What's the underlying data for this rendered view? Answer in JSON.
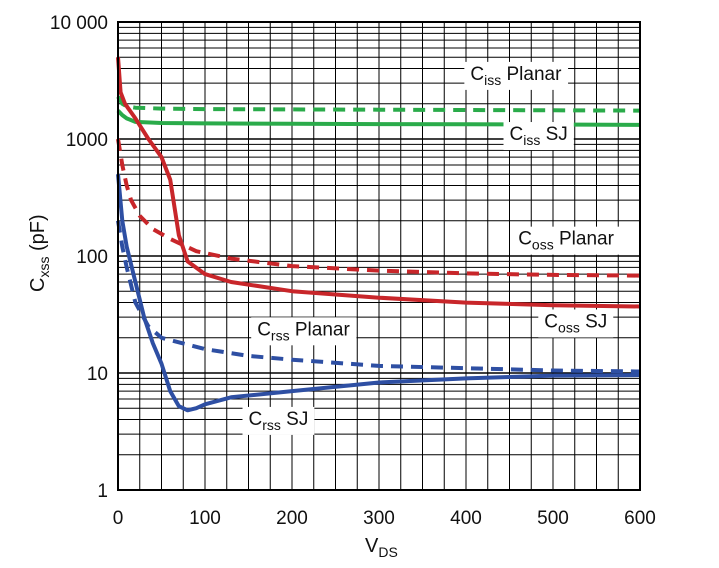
{
  "chart_data": {
    "type": "line",
    "xlabel": {
      "main": "V",
      "sub": "DS"
    },
    "ylabel": {
      "main": "C",
      "sub": "xss",
      "unit": " (pF)"
    },
    "xlim": [
      0,
      600
    ],
    "ylim": [
      1,
      10000
    ],
    "yscale": "log",
    "grid": true,
    "x_ticks": [
      0,
      100,
      200,
      300,
      400,
      500,
      600
    ],
    "x_tick_labels": [
      "0",
      "100",
      "200",
      "300",
      "400",
      "500",
      "600"
    ],
    "y_ticks": [
      1,
      10,
      100,
      1000,
      10000
    ],
    "y_tick_labels": [
      "1",
      "10",
      "100",
      "1000",
      "10 000"
    ],
    "series": [
      {
        "name": "Ciss Planar",
        "main": "C",
        "sub": "iss",
        "rest": " Planar",
        "color": "#2aab4a",
        "dash": true,
        "points": [
          [
            0,
            2300
          ],
          [
            5,
            2000
          ],
          [
            10,
            1900
          ],
          [
            20,
            1850
          ],
          [
            50,
            1820
          ],
          [
            100,
            1800
          ],
          [
            200,
            1790
          ],
          [
            300,
            1780
          ],
          [
            400,
            1770
          ],
          [
            500,
            1760
          ],
          [
            600,
            1750
          ]
        ]
      },
      {
        "name": "Ciss SJ",
        "main": "C",
        "sub": "iss",
        "rest": " SJ",
        "color": "#2aab4a",
        "dash": false,
        "points": [
          [
            0,
            1750
          ],
          [
            5,
            1600
          ],
          [
            10,
            1500
          ],
          [
            20,
            1400
          ],
          [
            50,
            1370
          ],
          [
            100,
            1360
          ],
          [
            200,
            1350
          ],
          [
            300,
            1340
          ],
          [
            400,
            1335
          ],
          [
            500,
            1330
          ],
          [
            600,
            1320
          ]
        ]
      },
      {
        "name": "Coss Planar",
        "main": "C",
        "sub": "oss",
        "rest": " Planar",
        "color": "#c8262a",
        "dash": true,
        "points": [
          [
            0,
            1000
          ],
          [
            5,
            600
          ],
          [
            10,
            400
          ],
          [
            15,
            300
          ],
          [
            25,
            220
          ],
          [
            40,
            170
          ],
          [
            60,
            140
          ],
          [
            90,
            110
          ],
          [
            130,
            95
          ],
          [
            200,
            82
          ],
          [
            300,
            75
          ],
          [
            400,
            71
          ],
          [
            500,
            69
          ],
          [
            600,
            68
          ]
        ]
      },
      {
        "name": "Coss SJ",
        "main": "C",
        "sub": "oss",
        "rest": " SJ",
        "color": "#c8262a",
        "dash": false,
        "points": [
          [
            0,
            5000
          ],
          [
            3,
            2500
          ],
          [
            8,
            2000
          ],
          [
            20,
            1500
          ],
          [
            35,
            1000
          ],
          [
            50,
            700
          ],
          [
            60,
            450
          ],
          [
            70,
            150
          ],
          [
            80,
            90
          ],
          [
            100,
            70
          ],
          [
            130,
            60
          ],
          [
            200,
            50
          ],
          [
            300,
            44
          ],
          [
            400,
            40
          ],
          [
            500,
            38
          ],
          [
            600,
            37
          ]
        ]
      },
      {
        "name": "Crss Planar",
        "main": "C",
        "sub": "rss",
        "rest": " Planar",
        "color": "#2e4fa3",
        "dash": true,
        "points": [
          [
            0,
            200
          ],
          [
            5,
            120
          ],
          [
            10,
            80
          ],
          [
            20,
            40
          ],
          [
            35,
            25
          ],
          [
            50,
            20
          ],
          [
            100,
            16
          ],
          [
            150,
            14
          ],
          [
            200,
            13
          ],
          [
            300,
            11.5
          ],
          [
            400,
            11
          ],
          [
            500,
            10.5
          ],
          [
            600,
            10.3
          ]
        ]
      },
      {
        "name": "Crss SJ",
        "main": "C",
        "sub": "rss",
        "rest": " SJ",
        "color": "#2e4fa3",
        "dash": false,
        "points": [
          [
            0,
            500
          ],
          [
            5,
            200
          ],
          [
            10,
            120
          ],
          [
            20,
            60
          ],
          [
            30,
            30
          ],
          [
            40,
            18
          ],
          [
            50,
            12
          ],
          [
            60,
            7
          ],
          [
            70,
            5.2
          ],
          [
            80,
            4.8
          ],
          [
            90,
            5
          ],
          [
            100,
            5.4
          ],
          [
            130,
            6.2
          ],
          [
            200,
            7
          ],
          [
            300,
            8.3
          ],
          [
            400,
            9
          ],
          [
            500,
            9.5
          ],
          [
            600,
            9.6
          ]
        ]
      }
    ],
    "annotations": [
      {
        "series": "Ciss Planar",
        "at": [
          405,
          3200
        ]
      },
      {
        "series": "Ciss SJ",
        "at": [
          450,
          980
        ]
      },
      {
        "series": "Coss Planar",
        "at": [
          460,
          125
        ]
      },
      {
        "series": "Coss SJ",
        "at": [
          490,
          24.5
        ]
      },
      {
        "series": "Crss Planar",
        "at": [
          160,
          21
        ]
      },
      {
        "series": "Crss SJ",
        "at": [
          150,
          3.6
        ]
      }
    ]
  }
}
